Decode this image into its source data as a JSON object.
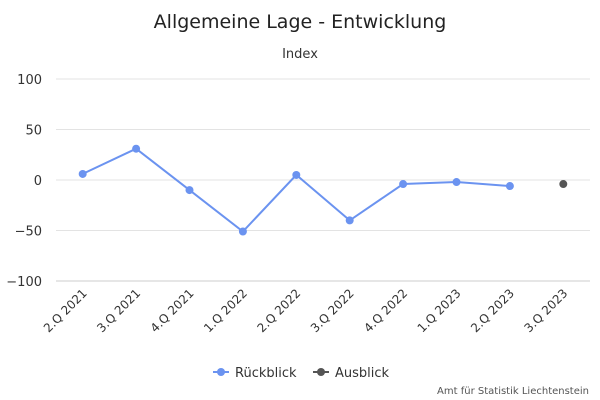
{
  "chart_data": {
    "type": "line",
    "title": "Allgemeine Lage - Entwicklung",
    "subtitle": "Index",
    "categories": [
      "2.Q 2021",
      "3.Q 2021",
      "4.Q 2021",
      "1.Q 2022",
      "2.Q 2022",
      "3.Q 2022",
      "4.Q 2022",
      "1.Q 2023",
      "2.Q 2023",
      "3.Q 2023"
    ],
    "series": [
      {
        "name": "Rückblick",
        "color": "#6b93f0",
        "values": [
          6,
          31,
          -10,
          -51,
          5,
          -40,
          -4,
          -2,
          -6,
          null
        ]
      },
      {
        "name": "Ausblick",
        "color": "#555555",
        "values": [
          null,
          null,
          null,
          null,
          null,
          null,
          null,
          null,
          null,
          -4
        ]
      }
    ],
    "yticks": [
      100,
      50,
      0,
      -50,
      -100
    ],
    "ylim": [
      -100,
      100
    ],
    "grid": true,
    "legend": "bottom-center",
    "credit": "Amt für Statistik Liechtenstein"
  }
}
